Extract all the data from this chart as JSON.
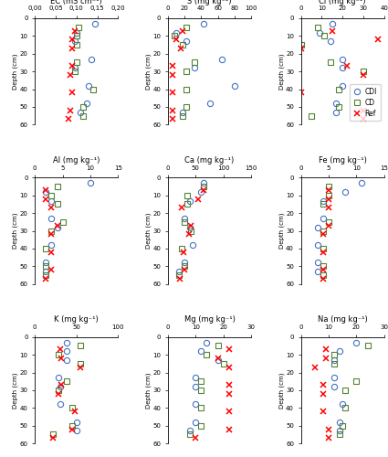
{
  "subplots": [
    {
      "title": "EC (mS cm⁻¹)",
      "xlim": [
        0.0,
        0.2
      ],
      "xticks": [
        0.0,
        0.05,
        0.1,
        0.15,
        0.2
      ],
      "xticklabels": [
        "0,00",
        "0,05",
        "0,10",
        "0,15",
        "0,20"
      ],
      "CDI": [
        0.145,
        0.1,
        0.095,
        0.135,
        0.095,
        0.13,
        0.125,
        0.11
      ],
      "CD": [
        0.105,
        0.1,
        0.1,
        0.1,
        0.095,
        0.14,
        0.115,
        0.115
      ],
      "Ref": [
        0.095,
        0.09,
        0.09,
        0.09,
        0.085,
        0.09,
        0.085,
        0.08
      ]
    },
    {
      "title": "S (mg kg⁻¹)",
      "xlim": [
        0,
        100
      ],
      "xticks": [
        0,
        20,
        40,
        60,
        80,
        100
      ],
      "xticklabels": [
        "0",
        "20",
        "40",
        "60",
        "80",
        "100"
      ],
      "CDI": [
        43,
        10,
        22,
        65,
        32,
        80,
        50,
        18
      ],
      "CD": [
        22,
        8,
        18,
        32,
        22,
        22,
        22,
        18
      ],
      "Ref": [
        18,
        10,
        15,
        5,
        5,
        5,
        5,
        5
      ]
    },
    {
      "title": "Cl (mg kg⁻¹)",
      "xlim": [
        0,
        40
      ],
      "xticks": [
        0,
        10,
        20,
        30,
        40
      ],
      "xticklabels": [
        "0",
        "10",
        "20",
        "30",
        "40"
      ],
      "CDI": [
        15,
        9,
        14,
        20,
        20,
        20,
        17,
        17
      ],
      "CD": [
        8,
        11,
        0,
        14,
        30,
        18,
        18,
        5
      ],
      "Ref": [
        15,
        37,
        0,
        22,
        30,
        0,
        30,
        30
      ]
    },
    {
      "title": "Al (mg kg⁻¹)",
      "xlim": [
        0,
        15
      ],
      "xticks": [
        0,
        5,
        10,
        15
      ],
      "xticklabels": [
        "0",
        "5",
        "10",
        "15"
      ],
      "CDI": [
        10,
        2,
        3,
        3,
        4,
        3,
        2,
        2
      ],
      "CD": [
        4,
        3,
        4,
        5,
        3,
        2,
        2,
        2
      ],
      "Ref": [
        2,
        2,
        3,
        4,
        3,
        3,
        3,
        2
      ]
    },
    {
      "title": "Ca (mg kg⁻¹)",
      "xlim": [
        0,
        150
      ],
      "xticks": [
        0,
        50,
        100,
        150
      ],
      "xticklabels": [
        "0",
        "50",
        "100",
        "150"
      ],
      "CDI": [
        65,
        60,
        40,
        30,
        40,
        45,
        30,
        20
      ],
      "CD": [
        65,
        35,
        35,
        30,
        42,
        25,
        30,
        20
      ],
      "Ref": [
        65,
        55,
        25,
        42,
        38,
        28,
        30,
        22
      ]
    },
    {
      "title": "Fe (mg kg⁻¹)",
      "xlim": [
        0,
        15
      ],
      "xticks": [
        0,
        5,
        10,
        15
      ],
      "xticklabels": [
        "0",
        "5",
        "10",
        "15"
      ],
      "CDI": [
        11,
        8,
        4,
        4,
        3,
        3,
        3,
        3
      ],
      "CD": [
        5,
        5,
        4,
        5,
        4,
        4,
        4,
        4
      ],
      "Ref": [
        5,
        5,
        5,
        5,
        4,
        4,
        4,
        4
      ]
    },
    {
      "title": "K (mg kg⁻¹)",
      "xlim": [
        0,
        100
      ],
      "xticks": [
        0,
        50,
        100
      ],
      "xticklabels": [
        "0",
        "50",
        "100"
      ],
      "CDI": [
        38,
        38,
        38,
        28,
        30,
        30,
        50,
        50
      ],
      "CD": [
        55,
        28,
        55,
        38,
        28,
        45,
        45,
        22
      ],
      "Ref": [
        30,
        32,
        55,
        32,
        28,
        48,
        45,
        22
      ]
    },
    {
      "title": "Mg (mg kg⁻¹)",
      "xlim": [
        0,
        30
      ],
      "xticks": [
        0,
        10,
        20,
        30
      ],
      "xticklabels": [
        "0",
        "10",
        "20",
        "30"
      ],
      "CDI": [
        14,
        12,
        18,
        10,
        10,
        10,
        10,
        8
      ],
      "CD": [
        18,
        14,
        20,
        12,
        12,
        12,
        12,
        8
      ],
      "Ref": [
        22,
        18,
        22,
        22,
        22,
        22,
        22,
        10
      ]
    },
    {
      "title": "Na (mg kg⁻¹)",
      "xlim": [
        0,
        30
      ],
      "xticks": [
        0,
        10,
        20,
        30
      ],
      "xticklabels": [
        "0",
        "10",
        "20",
        "30"
      ],
      "CDI": [
        20,
        14,
        12,
        12,
        12,
        15,
        14,
        14
      ],
      "CD": [
        24,
        12,
        12,
        20,
        16,
        16,
        15,
        14
      ],
      "Ref": [
        9,
        9,
        5,
        8,
        8,
        8,
        10,
        10
      ]
    }
  ],
  "depth_CDI": [
    3,
    8,
    13,
    23,
    28,
    38,
    48,
    53
  ],
  "depth_CD": [
    5,
    10,
    15,
    25,
    30,
    40,
    50,
    55
  ],
  "depth_Ref": [
    7,
    12,
    17,
    27,
    32,
    42,
    52,
    57
  ],
  "ylim": [
    0,
    60
  ],
  "yticks": [
    0,
    10,
    20,
    30,
    40,
    50,
    60
  ],
  "CDI_color": "#4472C4",
  "CD_color": "#548235",
  "Ref_color": "#FF0000",
  "legend_labels": [
    "CDI",
    "CD",
    "Ref"
  ]
}
